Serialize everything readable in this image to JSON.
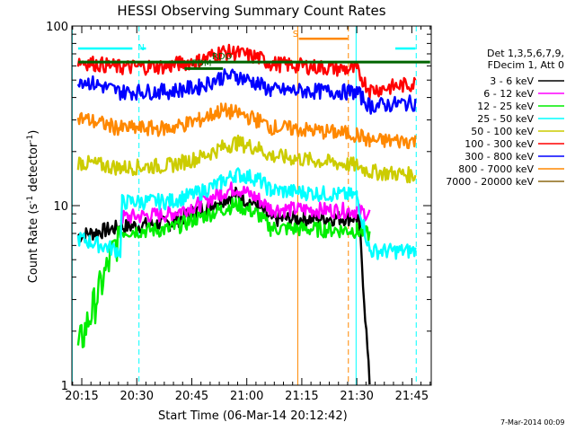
{
  "chart_data": {
    "type": "line",
    "title": "HESSI Observing Summary Count Rates",
    "xlabel": "Start Time (06-Mar-14 20:12:42)",
    "ylabel": "Count Rate (s⁻¹ detector⁻¹)",
    "y_scale": "log",
    "ylim": [
      1,
      100
    ],
    "xlim_minutes": [
      -2.7,
      95.3
    ],
    "x_ticks": [
      {
        "label": "20:15",
        "minute": 0
      },
      {
        "label": "20:30",
        "minute": 15
      },
      {
        "label": "20:45",
        "minute": 30
      },
      {
        "label": "21:00",
        "minute": 45
      },
      {
        "label": "21:15",
        "minute": 60
      },
      {
        "label": "21:30",
        "minute": 75
      },
      {
        "label": "21:45",
        "minute": 90
      }
    ],
    "y_ticks": [
      {
        "label": "1",
        "value": 1
      },
      {
        "label": "10",
        "value": 10
      },
      {
        "label": "100",
        "value": 100
      }
    ],
    "legend_header": [
      "Det 1,3,5,6,7,9,",
      "FDecim 1, Att 0"
    ],
    "legend_position": "right",
    "series": [
      {
        "name": "3 - 6 keV",
        "color": "#000000",
        "points": [
          [
            -1,
            6.8
          ],
          [
            10.5,
            7.6
          ],
          [
            24,
            8
          ],
          [
            32,
            9.5
          ],
          [
            38,
            10.8
          ],
          [
            42,
            11.6
          ],
          [
            48,
            10
          ],
          [
            51.5,
            8.4
          ],
          [
            75,
            8.6
          ],
          [
            75.8,
            7.5
          ],
          [
            78.5,
            1
          ]
        ]
      },
      {
        "name": "6 - 12 keV",
        "color": "#ff00ff",
        "points": [
          [
            10.5,
            8.6
          ],
          [
            24,
            9
          ],
          [
            32,
            10.2
          ],
          [
            38,
            11.8
          ],
          [
            42,
            12.6
          ],
          [
            48,
            11
          ],
          [
            51.5,
            9.6
          ],
          [
            75,
            9.4
          ],
          [
            78.5,
            9
          ]
        ]
      },
      {
        "name": "12 - 25 keV",
        "color": "#00ee00",
        "points": [
          [
            -1,
            1.6
          ],
          [
            10.5,
            7.2
          ],
          [
            24,
            7.4
          ],
          [
            32,
            8.6
          ],
          [
            38,
            9.5
          ],
          [
            42,
            10.2
          ],
          [
            48,
            9
          ],
          [
            51.5,
            7.5
          ],
          [
            75,
            7.3
          ],
          [
            78.5,
            6.9
          ]
        ]
      },
      {
        "name": "25 - 50 keV",
        "color": "#00ffff",
        "points": [
          [
            -1,
            6.6
          ],
          [
            10.5,
            5.6
          ],
          [
            11,
            10.5
          ],
          [
            24,
            10.6
          ],
          [
            32,
            11.8
          ],
          [
            38,
            13.5
          ],
          [
            42,
            15
          ],
          [
            48,
            14.2
          ],
          [
            51.5,
            12.2
          ],
          [
            75,
            11.4
          ],
          [
            78.5,
            5.6
          ],
          [
            91,
            5.6
          ]
        ]
      },
      {
        "name": "50 - 100 keV",
        "color": "#cccc00",
        "points": [
          [
            -1,
            17.5
          ],
          [
            10.5,
            16.3
          ],
          [
            24,
            16.8
          ],
          [
            32,
            18.5
          ],
          [
            38,
            21
          ],
          [
            42,
            22.5
          ],
          [
            48,
            21
          ],
          [
            51.5,
            19
          ],
          [
            75,
            16.8
          ],
          [
            78.5,
            15.5
          ],
          [
            91,
            14.8
          ]
        ]
      },
      {
        "name": "100 - 300 keV",
        "color": "#ff0000",
        "points": [
          [
            -1,
            64
          ],
          [
            10.5,
            59
          ],
          [
            24,
            60
          ],
          [
            26.5,
            62
          ],
          [
            32,
            64
          ],
          [
            38,
            72
          ],
          [
            42,
            71
          ],
          [
            48,
            67
          ],
          [
            51.5,
            62
          ],
          [
            75,
            57
          ],
          [
            78.5,
            44
          ],
          [
            91,
            48
          ]
        ]
      },
      {
        "name": "300 - 800 keV",
        "color": "#0000ff",
        "points": [
          [
            -1,
            51
          ],
          [
            10.5,
            43
          ],
          [
            24,
            43.5
          ],
          [
            32,
            46
          ],
          [
            38,
            52
          ],
          [
            42,
            53
          ],
          [
            48,
            48
          ],
          [
            51.5,
            44
          ],
          [
            75,
            43
          ],
          [
            78.5,
            36
          ],
          [
            91,
            37.5
          ]
        ]
      },
      {
        "name": "800 - 7000 keV",
        "color": "#ff8800",
        "points": [
          [
            -1,
            31
          ],
          [
            10.5,
            27
          ],
          [
            24,
            27
          ],
          [
            32,
            30
          ],
          [
            38,
            34
          ],
          [
            42,
            33
          ],
          [
            48,
            30
          ],
          [
            51.5,
            27.5
          ],
          [
            75,
            25
          ],
          [
            78.5,
            23
          ],
          [
            91,
            23
          ]
        ]
      },
      {
        "name": "7000 - 20000 keV",
        "color": "#8b6914",
        "points": []
      }
    ],
    "markers": [
      {
        "label": "N",
        "color": "#00ffff",
        "from": -1,
        "to": 13.8,
        "level": 75
      },
      {
        "label": "",
        "color": "#00ffff",
        "from": 16,
        "to": 17.5,
        "level": 75
      },
      {
        "label": "",
        "color": "#00ffff",
        "from": 85.5,
        "to": 91,
        "level": 75
      },
      {
        "label": "FDM",
        "color": "#006400",
        "from": 28,
        "to": 38.5,
        "level": 58
      },
      {
        "label": "RDO",
        "color": "#006400",
        "from": -1,
        "to": 95,
        "level": 63
      },
      {
        "label": "S",
        "color": "#ff8800",
        "from": 59.2,
        "to": 72.5,
        "level": 85
      }
    ],
    "vertical_lines": [
      {
        "minute": -2.6,
        "color": "#00ffff",
        "style": "solid"
      },
      {
        "minute": 15.6,
        "color": "#00ffff",
        "style": "dashed"
      },
      {
        "minute": 74.8,
        "color": "#00ffff",
        "style": "solid"
      },
      {
        "minute": 91.2,
        "color": "#00ffff",
        "style": "dashed"
      },
      {
        "minute": 58.9,
        "color": "#ff8800",
        "style": "solid"
      },
      {
        "minute": 72.7,
        "color": "#ff8800",
        "style": "dashed"
      }
    ],
    "grid": false
  },
  "date_stamp": "7-Mar-2014 00:09",
  "ylabel_parts": {
    "base": "Count Rate (s",
    "sup": "-1",
    "mid": " detector",
    "sup2": "-1",
    "end": ")"
  }
}
